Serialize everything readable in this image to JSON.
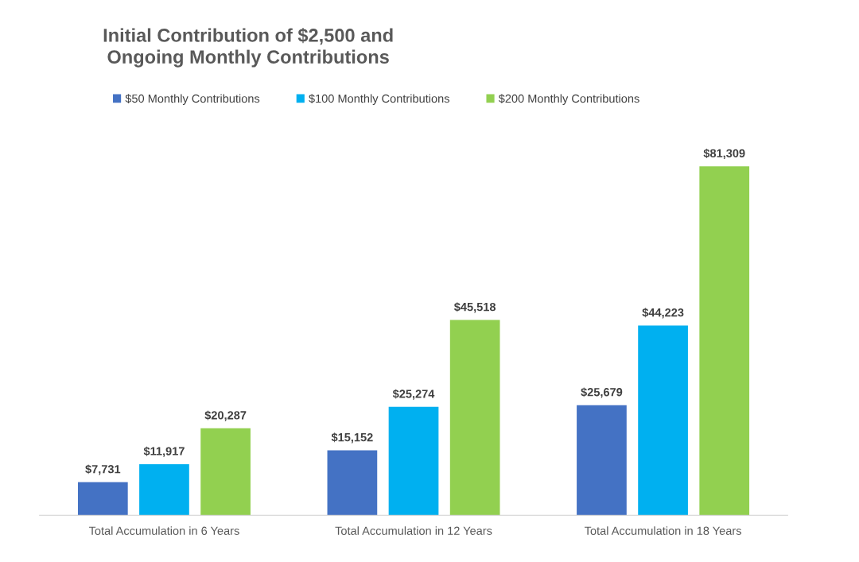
{
  "chart_data": {
    "type": "bar",
    "title": "Initial Contribution of $2,500 and\nOngoing Monthly Contributions",
    "categories": [
      "Total Accumulation in 6 Years",
      "Total Accumulation in 12 Years",
      "Total Accumulation in 18 Years"
    ],
    "series": [
      {
        "name": "$50 Monthly Contributions",
        "color": "#4472c4",
        "values": [
          7731,
          15152,
          25679
        ],
        "value_labels": [
          "$7,731",
          "$15,152",
          "$25,679"
        ]
      },
      {
        "name": "$100 Monthly Contributions",
        "color": "#00b0f0",
        "values": [
          11917,
          25274,
          44223
        ],
        "value_labels": [
          "$11,917",
          "$25,274",
          "$44,223"
        ]
      },
      {
        "name": "$200 Monthly Contributions",
        "color": "#92d050",
        "values": [
          20287,
          45518,
          81309
        ],
        "value_labels": [
          "$20,287",
          "$45,518",
          "$81,309"
        ]
      }
    ],
    "legend": "top left",
    "grid": false
  }
}
